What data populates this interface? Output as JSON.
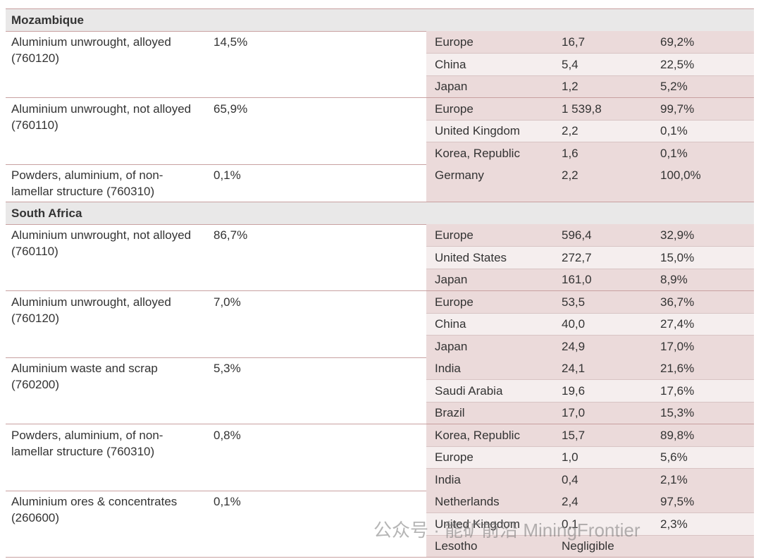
{
  "sections": [
    {
      "name": "Mozambique",
      "products": [
        {
          "product": "Aluminium unwrought, alloyed (760120)",
          "share": "14,5%",
          "destinations": [
            [
              "Europe",
              "16,7",
              "69,2%"
            ],
            [
              "China",
              "5,4",
              "22,5%"
            ],
            [
              "Japan",
              "1,2",
              "5,2%"
            ]
          ]
        },
        {
          "product": "Aluminium unwrought, not alloyed (760110)",
          "share": "65,9%",
          "destinations": [
            [
              "Europe",
              "1 539,8",
              "99,7%"
            ],
            [
              "United Kingdom",
              "2,2",
              "0,1%"
            ],
            [
              "Korea, Republic",
              "1,6",
              "0,1%"
            ]
          ]
        },
        {
          "product": "Powders, aluminium, of non-lamellar structure (760310)",
          "share": "0,1%",
          "destinations": [
            [
              "Germany",
              "2,2",
              "100,0%"
            ]
          ]
        }
      ]
    },
    {
      "name": "South Africa",
      "products": [
        {
          "product": "Aluminium unwrought, not alloyed (760110)",
          "share": "86,7%",
          "destinations": [
            [
              "Europe",
              "596,4",
              "32,9%"
            ],
            [
              "United States",
              "272,7",
              "15,0%"
            ],
            [
              "Japan",
              "161,0",
              "8,9%"
            ]
          ]
        },
        {
          "product": "Aluminium unwrought, alloyed (760120)",
          "share": "7,0%",
          "destinations": [
            [
              "Europe",
              "53,5",
              "36,7%"
            ],
            [
              "China",
              "40,0",
              "27,4%"
            ],
            [
              "Japan",
              "24,9",
              "17,0%"
            ]
          ]
        },
        {
          "product": "Aluminium waste and scrap (760200)",
          "share": "5,3%",
          "destinations": [
            [
              "India",
              "24,1",
              "21,6%"
            ],
            [
              "Saudi Arabia",
              "19,6",
              "17,6%"
            ],
            [
              "Brazil",
              "17,0",
              "15,3%"
            ]
          ]
        },
        {
          "product": "Powders, aluminium, of non-lamellar structure (760310)",
          "share": "0,8%",
          "destinations": [
            [
              "Korea, Republic",
              "15,7",
              "89,8%"
            ],
            [
              "Europe",
              "1,0",
              "5,6%"
            ],
            [
              "India",
              "0,4",
              "2,1%"
            ]
          ]
        },
        {
          "product": "Aluminium ores & concentrates (260600)",
          "share": "0,1%",
          "destinations": [
            [
              "Netherlands",
              "2,4",
              "97,5%"
            ],
            [
              "United Kingdom",
              "0,1",
              "2,3%"
            ],
            [
              "Lesotho",
              "Negligible"
            ]
          ]
        }
      ]
    }
  ],
  "watermark": "公众号 · 能矿前沿 MiningFrontier"
}
